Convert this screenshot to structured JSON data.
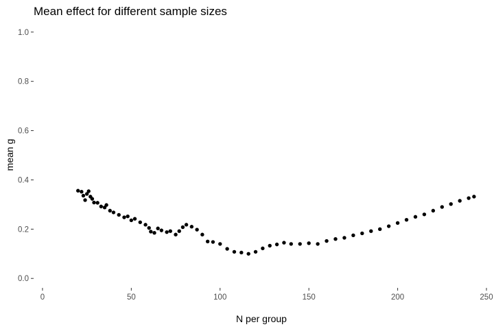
{
  "chart_data": {
    "type": "scatter",
    "title": "Mean effect for different sample sizes",
    "xlabel": "N per group",
    "ylabel": "mean g",
    "xlim": [
      -5,
      250
    ],
    "ylim": [
      -0.03,
      1.03
    ],
    "x_ticks": [
      0,
      50,
      100,
      150,
      200,
      250
    ],
    "y_ticks": [
      0.0,
      0.2,
      0.4,
      0.6,
      0.8,
      1.0
    ],
    "x_tick_labels": [
      "0",
      "50",
      "100",
      "150",
      "200",
      "250"
    ],
    "y_tick_labels": [
      "0.0",
      "0.2",
      "0.4",
      "0.6",
      "0.8",
      "1.0"
    ],
    "grid": false,
    "legend": "none",
    "point_color": "#000000",
    "anchors": [
      [
        20,
        0.356
      ],
      [
        22,
        0.352
      ],
      [
        23,
        0.336
      ],
      [
        24,
        0.318
      ],
      [
        25,
        0.343
      ],
      [
        26,
        0.354
      ],
      [
        27,
        0.332
      ],
      [
        28,
        0.323
      ],
      [
        29,
        0.308
      ],
      [
        31,
        0.307
      ],
      [
        33,
        0.292
      ],
      [
        35,
        0.288
      ],
      [
        36,
        0.298
      ],
      [
        38,
        0.275
      ],
      [
        40,
        0.268
      ],
      [
        43,
        0.258
      ],
      [
        46,
        0.248
      ],
      [
        48,
        0.252
      ],
      [
        50,
        0.236
      ],
      [
        52,
        0.242
      ],
      [
        55,
        0.228
      ],
      [
        58,
        0.218
      ],
      [
        60,
        0.205
      ],
      [
        61,
        0.19
      ],
      [
        63,
        0.185
      ],
      [
        65,
        0.203
      ],
      [
        67,
        0.195
      ],
      [
        70,
        0.188
      ],
      [
        72,
        0.192
      ],
      [
        75,
        0.178
      ],
      [
        77,
        0.192
      ],
      [
        79,
        0.208
      ],
      [
        81,
        0.218
      ],
      [
        84,
        0.21
      ],
      [
        87,
        0.198
      ],
      [
        90,
        0.178
      ],
      [
        93,
        0.15
      ],
      [
        96,
        0.148
      ],
      [
        100,
        0.14
      ],
      [
        104,
        0.12
      ],
      [
        108,
        0.108
      ],
      [
        112,
        0.105
      ],
      [
        116,
        0.1
      ],
      [
        120,
        0.108
      ],
      [
        124,
        0.122
      ],
      [
        128,
        0.133
      ],
      [
        132,
        0.138
      ],
      [
        136,
        0.145
      ],
      [
        140,
        0.14
      ],
      [
        145,
        0.14
      ],
      [
        150,
        0.143
      ],
      [
        155,
        0.14
      ],
      [
        160,
        0.152
      ],
      [
        165,
        0.16
      ],
      [
        170,
        0.165
      ],
      [
        175,
        0.175
      ],
      [
        180,
        0.183
      ],
      [
        185,
        0.192
      ],
      [
        190,
        0.2
      ],
      [
        195,
        0.212
      ],
      [
        200,
        0.225
      ],
      [
        205,
        0.238
      ],
      [
        210,
        0.25
      ],
      [
        215,
        0.26
      ],
      [
        220,
        0.275
      ],
      [
        225,
        0.29
      ],
      [
        230,
        0.302
      ],
      [
        235,
        0.315
      ],
      [
        240,
        0.326
      ],
      [
        243,
        0.332
      ]
    ]
  }
}
